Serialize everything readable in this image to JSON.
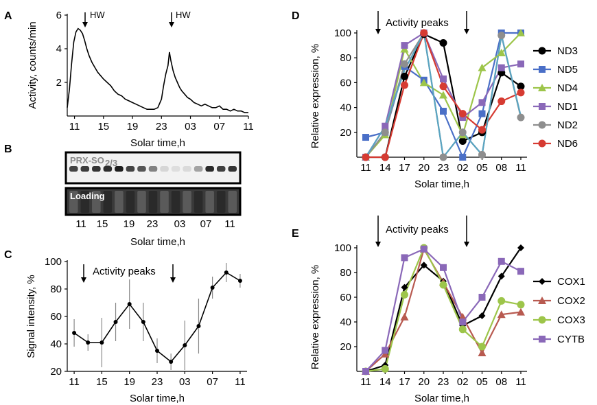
{
  "chart_data": [
    {
      "panel": "A",
      "type": "line",
      "ylabel": "Activity, counts/min",
      "xlabel": "Solar time,h",
      "x_ticks": [
        "11",
        "15",
        "19",
        "23",
        "03",
        "07",
        "11"
      ],
      "y_ticks": [
        2,
        4,
        6
      ],
      "ylim": [
        0,
        6
      ],
      "annotations": [
        "HW",
        "HW"
      ],
      "series": [
        {
          "x": [
            10.0,
            10.3,
            10.6,
            10.9,
            11.2,
            11.5,
            11.8,
            12.1,
            12.4,
            12.7,
            13.0,
            13.4,
            13.8,
            14.2,
            14.6,
            15.0,
            15.5,
            16.0,
            16.5,
            17.0,
            17.5,
            18.0,
            18.5,
            19.0,
            19.5,
            20.0,
            20.5,
            21.0,
            21.5,
            22.0,
            22.5,
            23.0,
            23.3,
            23.6,
            23.9,
            24.1,
            24.3,
            24.6,
            24.9,
            25.2,
            25.5,
            25.8,
            26.2,
            26.6,
            27.0,
            27.5,
            28.0,
            28.5,
            29.0,
            29.5,
            30.0,
            30.5,
            31.0,
            31.5,
            32.0,
            32.5,
            33.0,
            33.5,
            34.0,
            34.5,
            35.0
          ],
          "y": [
            0.5,
            1.6,
            3.1,
            4.4,
            5.0,
            5.2,
            5.1,
            4.9,
            4.5,
            4.0,
            3.6,
            3.2,
            2.9,
            2.6,
            2.4,
            2.2,
            2.0,
            1.8,
            1.5,
            1.3,
            1.2,
            1.0,
            0.9,
            0.8,
            0.7,
            0.6,
            0.5,
            0.4,
            0.4,
            0.4,
            0.5,
            1.0,
            1.8,
            2.5,
            3.0,
            3.8,
            3.3,
            2.7,
            2.3,
            2.0,
            1.7,
            1.5,
            1.3,
            1.1,
            1.0,
            0.8,
            0.7,
            0.6,
            0.7,
            0.6,
            0.5,
            0.5,
            0.6,
            0.4,
            0.4,
            0.3,
            0.4,
            0.3,
            0.3,
            0.2,
            0.2
          ]
        }
      ]
    },
    {
      "panel": "B",
      "type": "blot",
      "xlabel": "Solar time,h",
      "x_ticks": [
        "11",
        "15",
        "19",
        "23",
        "03",
        "07",
        "11"
      ],
      "label_top": "PRX-SO",
      "label_top_sub": "2/3",
      "label_bottom": "Loading",
      "band_intensity": [
        0.78,
        0.82,
        0.85,
        0.88,
        0.95,
        0.78,
        0.7,
        0.5,
        0.12,
        0.08,
        0.1,
        0.35,
        0.9,
        0.8,
        0.85
      ]
    },
    {
      "panel": "C",
      "type": "line",
      "ylabel": "Signal intensity, %",
      "xlabel": "Solar time,h",
      "x_ticks": [
        "11",
        "15",
        "19",
        "23",
        "03",
        "07",
        "11"
      ],
      "y_ticks": [
        20,
        40,
        60,
        80,
        100
      ],
      "ylim": [
        20,
        100
      ],
      "annotation": "Activity peaks",
      "series": [
        {
          "x": [
            11,
            13,
            15,
            17,
            19,
            21,
            23,
            25,
            27,
            29,
            31,
            33,
            35
          ],
          "y": [
            48,
            41,
            41,
            56,
            69,
            56,
            35,
            27,
            39,
            53,
            81,
            92,
            86
          ],
          "err": [
            10,
            6,
            18,
            14,
            18,
            14,
            9,
            6,
            18,
            20,
            8,
            7,
            5
          ]
        }
      ]
    },
    {
      "panel": "D",
      "type": "line",
      "ylabel": "Relative expression, %",
      "xlabel": "Solar time,h",
      "categories": [
        "11",
        "14",
        "17",
        "20",
        "23",
        "02",
        "05",
        "08",
        "11"
      ],
      "y_ticks": [
        20,
        40,
        60,
        80,
        100
      ],
      "ylim": [
        0,
        100
      ],
      "annotation": "Activity peaks",
      "series": [
        {
          "name": "ND3",
          "color": "#000000",
          "marker": "circle",
          "values": [
            0,
            0,
            65,
            99,
            92,
            13,
            20,
            68,
            57
          ]
        },
        {
          "name": "ND5",
          "color": "#4a6fc7",
          "marker": "square",
          "values": [
            16,
            20,
            73,
            62,
            37,
            0,
            35,
            100,
            100
          ]
        },
        {
          "name": "ND4",
          "color": "#9dc54a",
          "marker": "triangle",
          "values": [
            0,
            18,
            87,
            60,
            50,
            18,
            72,
            84,
            100
          ]
        },
        {
          "name": "ND1",
          "color": "#8a68b8",
          "marker": "square",
          "values": [
            0,
            25,
            90,
            100,
            63,
            32,
            44,
            72,
            75
          ]
        },
        {
          "name": "ND2",
          "color": "#8e8e8e",
          "marker": "circle",
          "values": [
            0,
            20,
            75,
            100,
            0,
            20,
            2,
            98,
            32
          ]
        },
        {
          "name": "ND6",
          "color": "#d63b32",
          "marker": "circle",
          "values": [
            0,
            0,
            58,
            100,
            57,
            35,
            22,
            45,
            52
          ]
        },
        {
          "name": "",
          "color": "#5aa5c2",
          "marker": "none",
          "values": [
            0,
            25,
            70,
            100,
            0,
            20,
            2,
            98,
            33
          ]
        }
      ]
    },
    {
      "panel": "E",
      "type": "line",
      "ylabel": "Relative expression, %",
      "xlabel": "Solar time,h",
      "categories": [
        "11",
        "14",
        "17",
        "20",
        "23",
        "02",
        "05",
        "08",
        "11"
      ],
      "y_ticks": [
        20,
        40,
        60,
        80,
        100
      ],
      "ylim": [
        0,
        100
      ],
      "annotation": "Activity peaks",
      "series": [
        {
          "name": "COX1",
          "color": "#000000",
          "marker": "diamond",
          "values": [
            0,
            5,
            68,
            86,
            73,
            37,
            45,
            77,
            100
          ]
        },
        {
          "name": "COX2",
          "color": "#b85a50",
          "marker": "triangle",
          "values": [
            0,
            14,
            44,
            99,
            72,
            44,
            15,
            46,
            48
          ]
        },
        {
          "name": "COX3",
          "color": "#9dc54a",
          "marker": "circle",
          "values": [
            0,
            2,
            62,
            100,
            70,
            34,
            20,
            57,
            54
          ]
        },
        {
          "name": "CYTB",
          "color": "#8a68b8",
          "marker": "square",
          "values": [
            0,
            17,
            92,
            99,
            84,
            40,
            60,
            89,
            81
          ]
        }
      ]
    }
  ],
  "panels": {
    "A": {
      "letter": "A",
      "hw1": "HW",
      "hw2": "HW"
    },
    "B": {
      "letter": "B"
    },
    "C": {
      "letter": "C"
    },
    "D": {
      "letter": "D"
    },
    "E": {
      "letter": "E"
    }
  }
}
